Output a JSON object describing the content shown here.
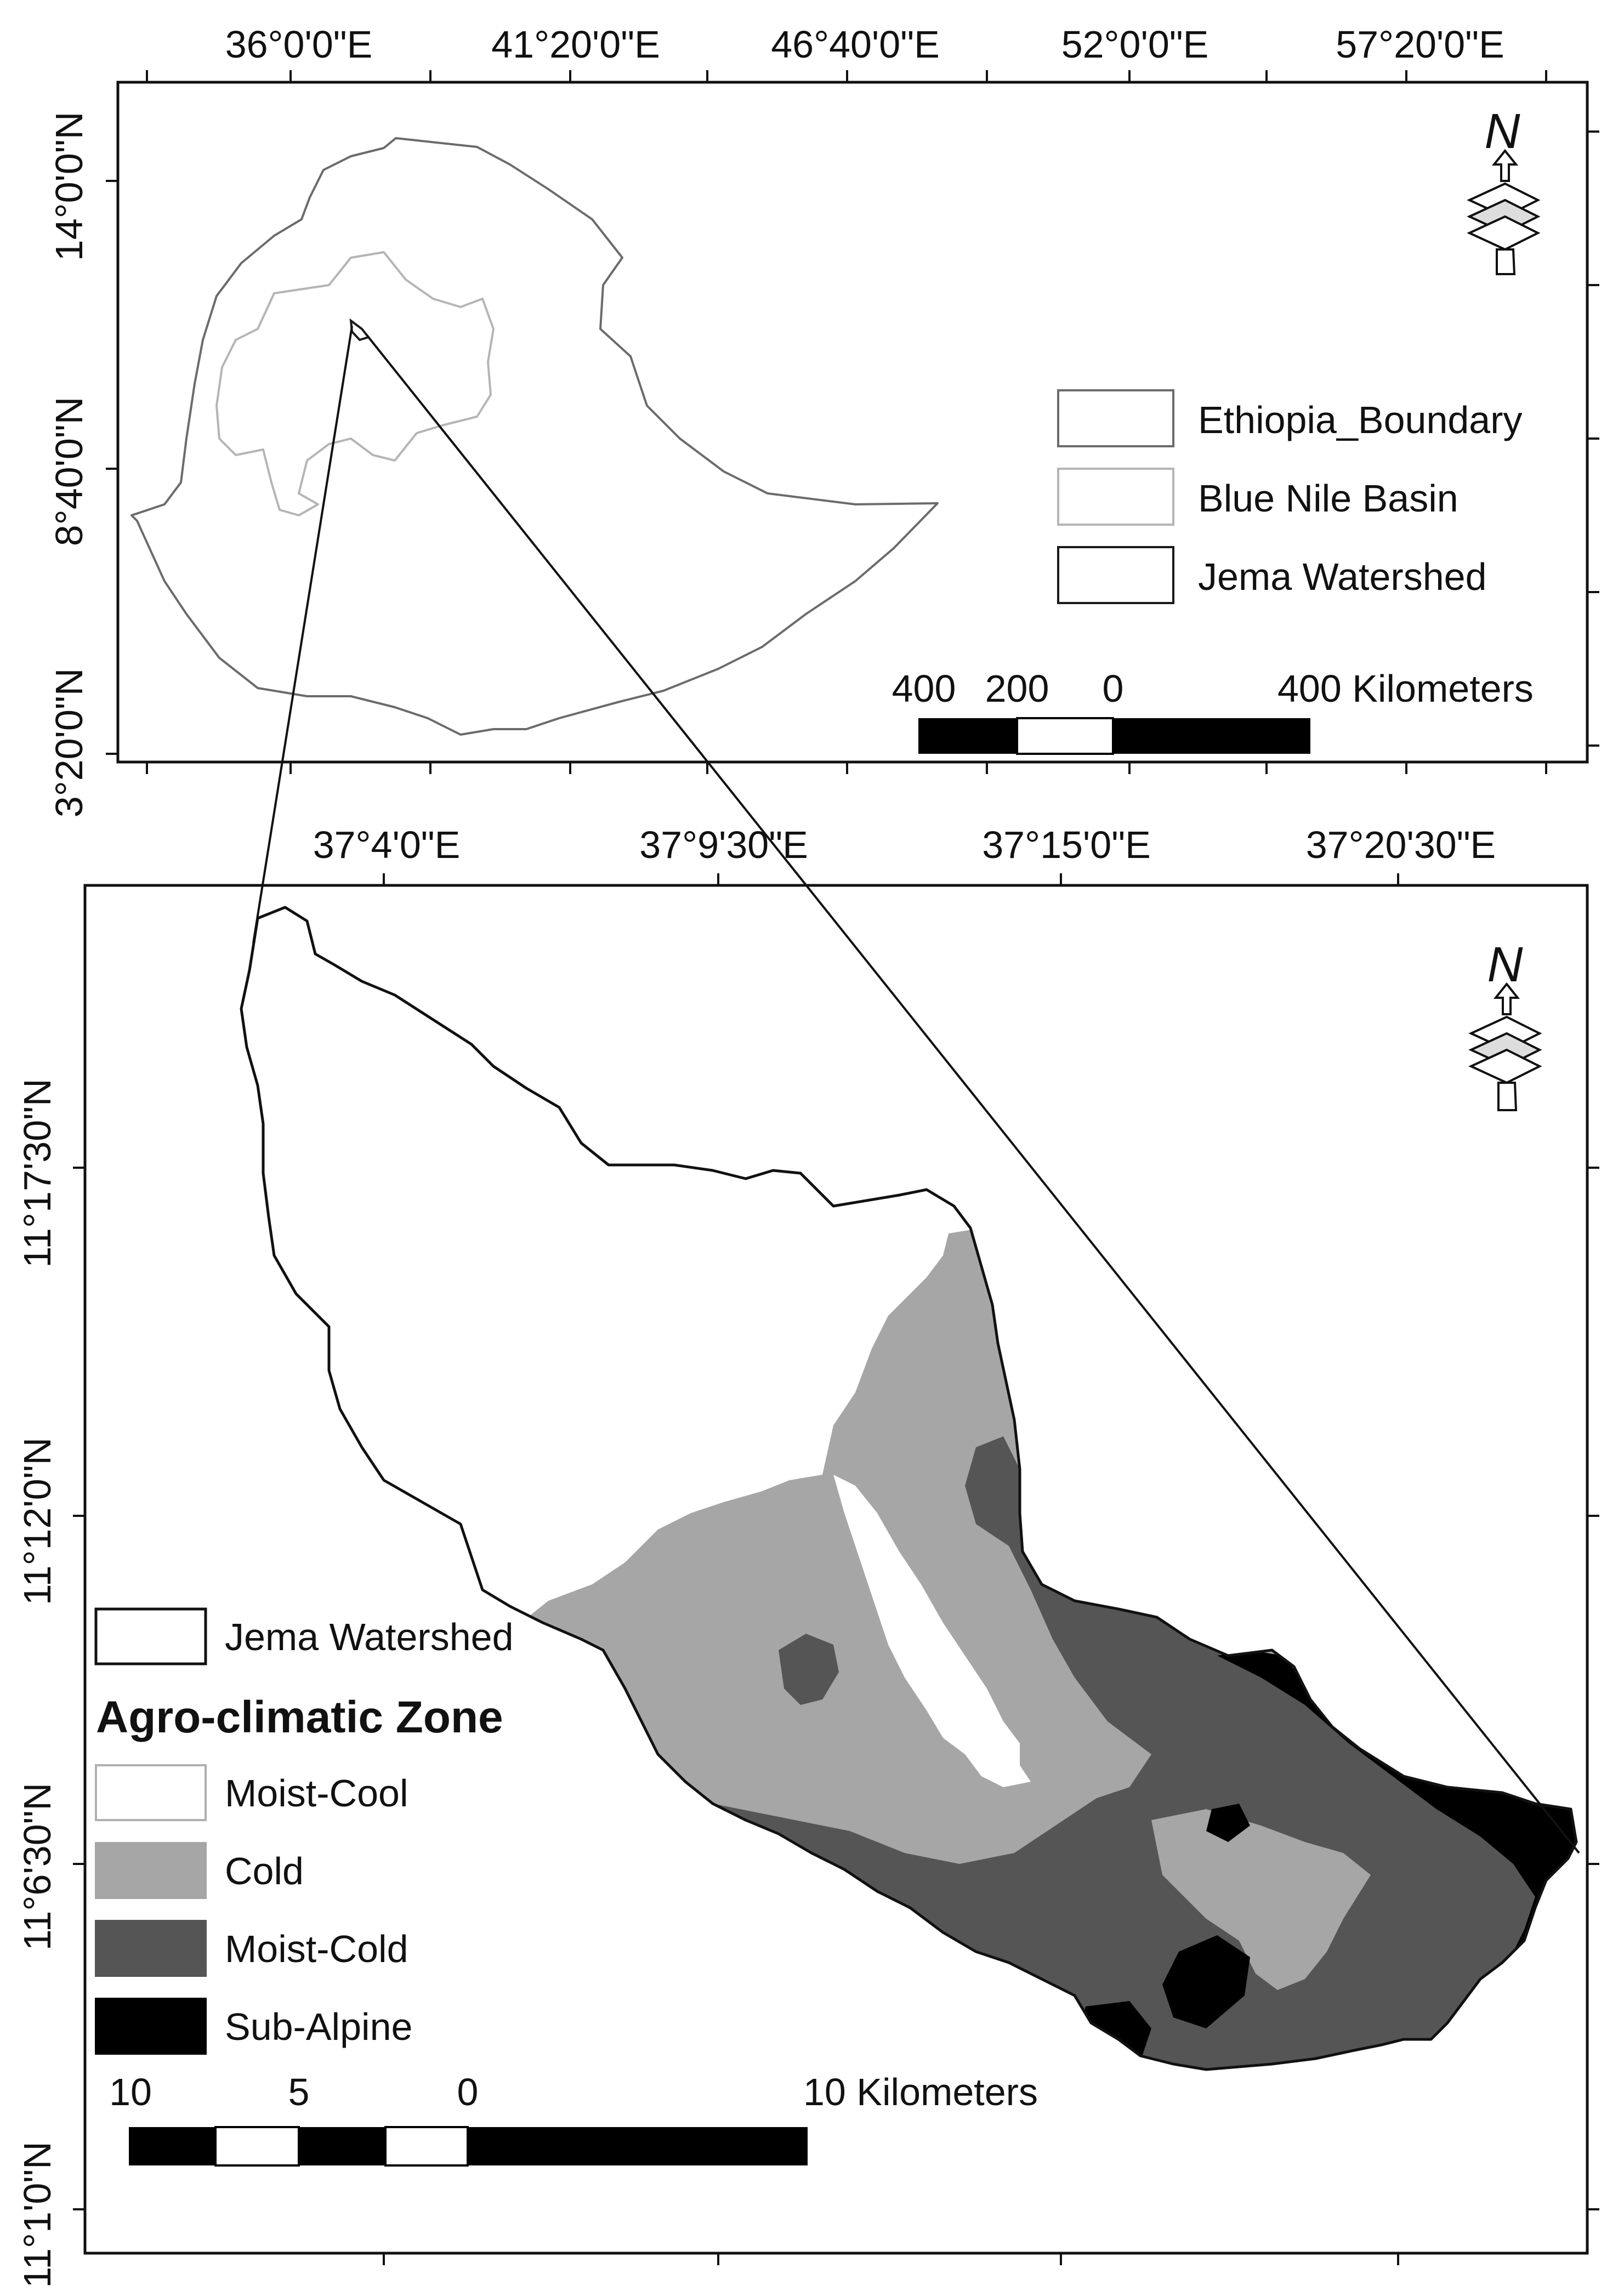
{
  "inset_map": {
    "top_ticks": [
      "36°0'0\"E",
      "41°20'0\"E",
      "46°40'0\"E",
      "52°0'0\"E",
      "57°20'0\"E"
    ],
    "left_ticks": [
      "14°0'0\"N",
      "8°40'0\"N",
      "3°20'0\"N"
    ],
    "legend": [
      {
        "label": "Ethiopia_Boundary",
        "stroke": "#6b6b6b",
        "fill": "#ffffff"
      },
      {
        "label": "Blue Nile Basin",
        "stroke": "#b5b5b5",
        "fill": "#ffffff"
      },
      {
        "label": "Jema Watershed",
        "stroke": "#1a1a1a",
        "fill": "#ffffff"
      }
    ],
    "scale_labels": [
      "400",
      "200",
      "0",
      "400 Kilometers"
    ],
    "north_label": "N"
  },
  "main_map": {
    "top_ticks": [
      "37°4'0\"E",
      "37°9'30\"E",
      "37°15'0\"E",
      "37°20'30\"E"
    ],
    "left_ticks": [
      "11°17'30\"N",
      "11°12'0\"N",
      "11°6'30\"N",
      "11°1'0\"N"
    ],
    "watershed_legend": {
      "label": "Jema Watershed",
      "stroke": "#111111",
      "fill": "#ffffff"
    },
    "legend_title": "Agro-climatic Zone",
    "zones": [
      {
        "label": "Moist-Cool",
        "fill": "#ffffff"
      },
      {
        "label": "Cold",
        "fill": "#a6a6a6"
      },
      {
        "label": "Moist-Cold",
        "fill": "#555555"
      },
      {
        "label": "Sub-Alpine",
        "fill": "#000000"
      }
    ],
    "scale_labels": [
      "10",
      "5",
      "0",
      "10 Kilometers"
    ],
    "north_label": "N"
  }
}
